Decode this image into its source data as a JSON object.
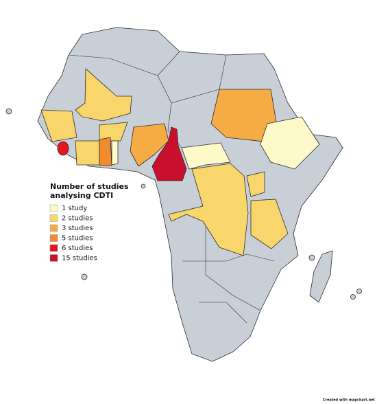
{
  "legend": {
    "title": "Number of studies analysing CDTI",
    "items": [
      {
        "label": "1 study",
        "color": "#fdf9c8"
      },
      {
        "label": "2 studies",
        "color": "#f8d66c"
      },
      {
        "label": "3 studies",
        "color": "#f5ac45"
      },
      {
        "label": "5 studies",
        "color": "#f08b2f"
      },
      {
        "label": "6 studies",
        "color": "#e4161e"
      },
      {
        "label": "15 studies",
        "color": "#c8102e"
      }
    ]
  },
  "credit": "Created with mapchart.net"
}
